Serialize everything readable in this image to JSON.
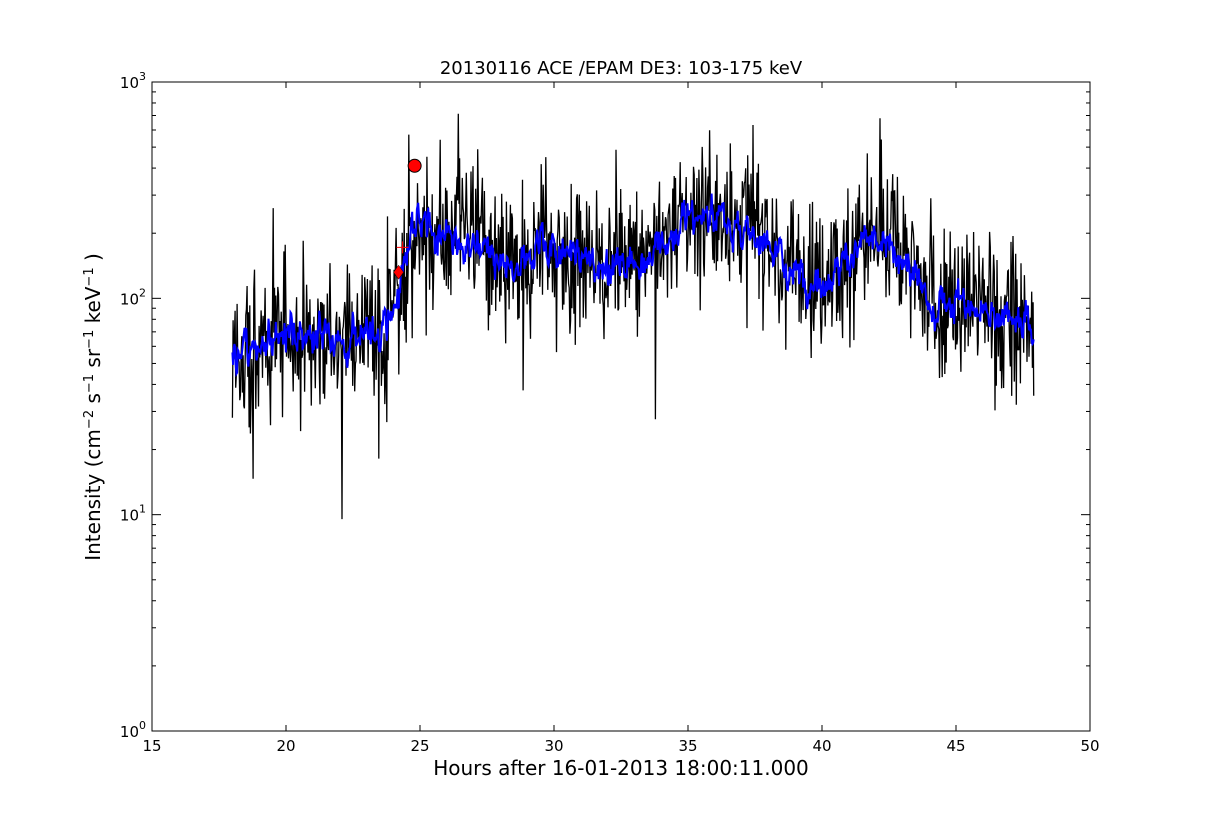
{
  "chart_data": {
    "type": "line",
    "title": "20130116 ACE /EPAM DE3: 103-175 keV",
    "xlabel": "Hours after 16-01-2013 18:00:11.000",
    "ylabel_main": "Intensity (cm",
    "ylabel_parts": [
      {
        "text": "Intensity (cm",
        "sup": false
      },
      {
        "text": "−2",
        "sup": true
      },
      {
        "text": " s",
        "sup": false
      },
      {
        "text": "−1",
        "sup": true
      },
      {
        "text": " sr",
        "sup": false
      },
      {
        "text": "−1",
        "sup": true
      },
      {
        "text": " keV",
        "sup": false
      },
      {
        "text": "−1",
        "sup": true
      },
      {
        "text": " )",
        "sup": false
      }
    ],
    "xlim": [
      15,
      50
    ],
    "ylim": [
      1,
      1000
    ],
    "yscale": "log",
    "grid": false,
    "x_ticks": [
      15,
      20,
      25,
      30,
      35,
      40,
      45,
      50
    ],
    "x_tick_labels": [
      "15",
      "20",
      "25",
      "30",
      "35",
      "40",
      "45",
      "50"
    ],
    "y_ticks": [
      {
        "value": 1,
        "base": "10",
        "exp": "0"
      },
      {
        "value": 10,
        "base": "10",
        "exp": "1"
      },
      {
        "value": 100,
        "base": "10",
        "exp": "2"
      },
      {
        "value": 1000,
        "base": "10",
        "exp": "3"
      }
    ],
    "series": [
      {
        "role": "raw",
        "color": "#000000",
        "x_start": 18.0,
        "x_end": 47.9,
        "points": 1200,
        "envelope_x": [
          18.0,
          19.0,
          20.0,
          21.0,
          22.0,
          23.0,
          23.8,
          24.3,
          24.8,
          25.5,
          26.5,
          27.3,
          28.0,
          29.0,
          29.5,
          30.0,
          31.0,
          32.0,
          33.0,
          34.0,
          35.0,
          36.0,
          37.0,
          38.0,
          38.3,
          39.0,
          40.0,
          41.0,
          41.5,
          42.0,
          42.5,
          43.0,
          44.0,
          45.0,
          46.0,
          47.0,
          47.9
        ],
        "envelope_y": [
          52,
          60,
          68,
          66,
          64,
          68,
          75,
          120,
          230,
          200,
          185,
          190,
          130,
          135,
          200,
          165,
          150,
          140,
          150,
          175,
          240,
          240,
          210,
          190,
          150,
          130,
          120,
          150,
          185,
          175,
          175,
          165,
          95,
          95,
          90,
          80,
          75
        ],
        "noise_factor": 1.55
      },
      {
        "role": "smoothed",
        "color": "#0000ff",
        "noise_factor": 1.22
      }
    ],
    "markers": [
      {
        "type": "circle",
        "x": 24.8,
        "y": 410,
        "color": "#ff0000"
      },
      {
        "type": "diamond",
        "x": 24.2,
        "y": 132,
        "color": "#ff0000"
      },
      {
        "type": "plus",
        "x": 24.35,
        "y": 172,
        "color": "#ff0000"
      }
    ]
  }
}
